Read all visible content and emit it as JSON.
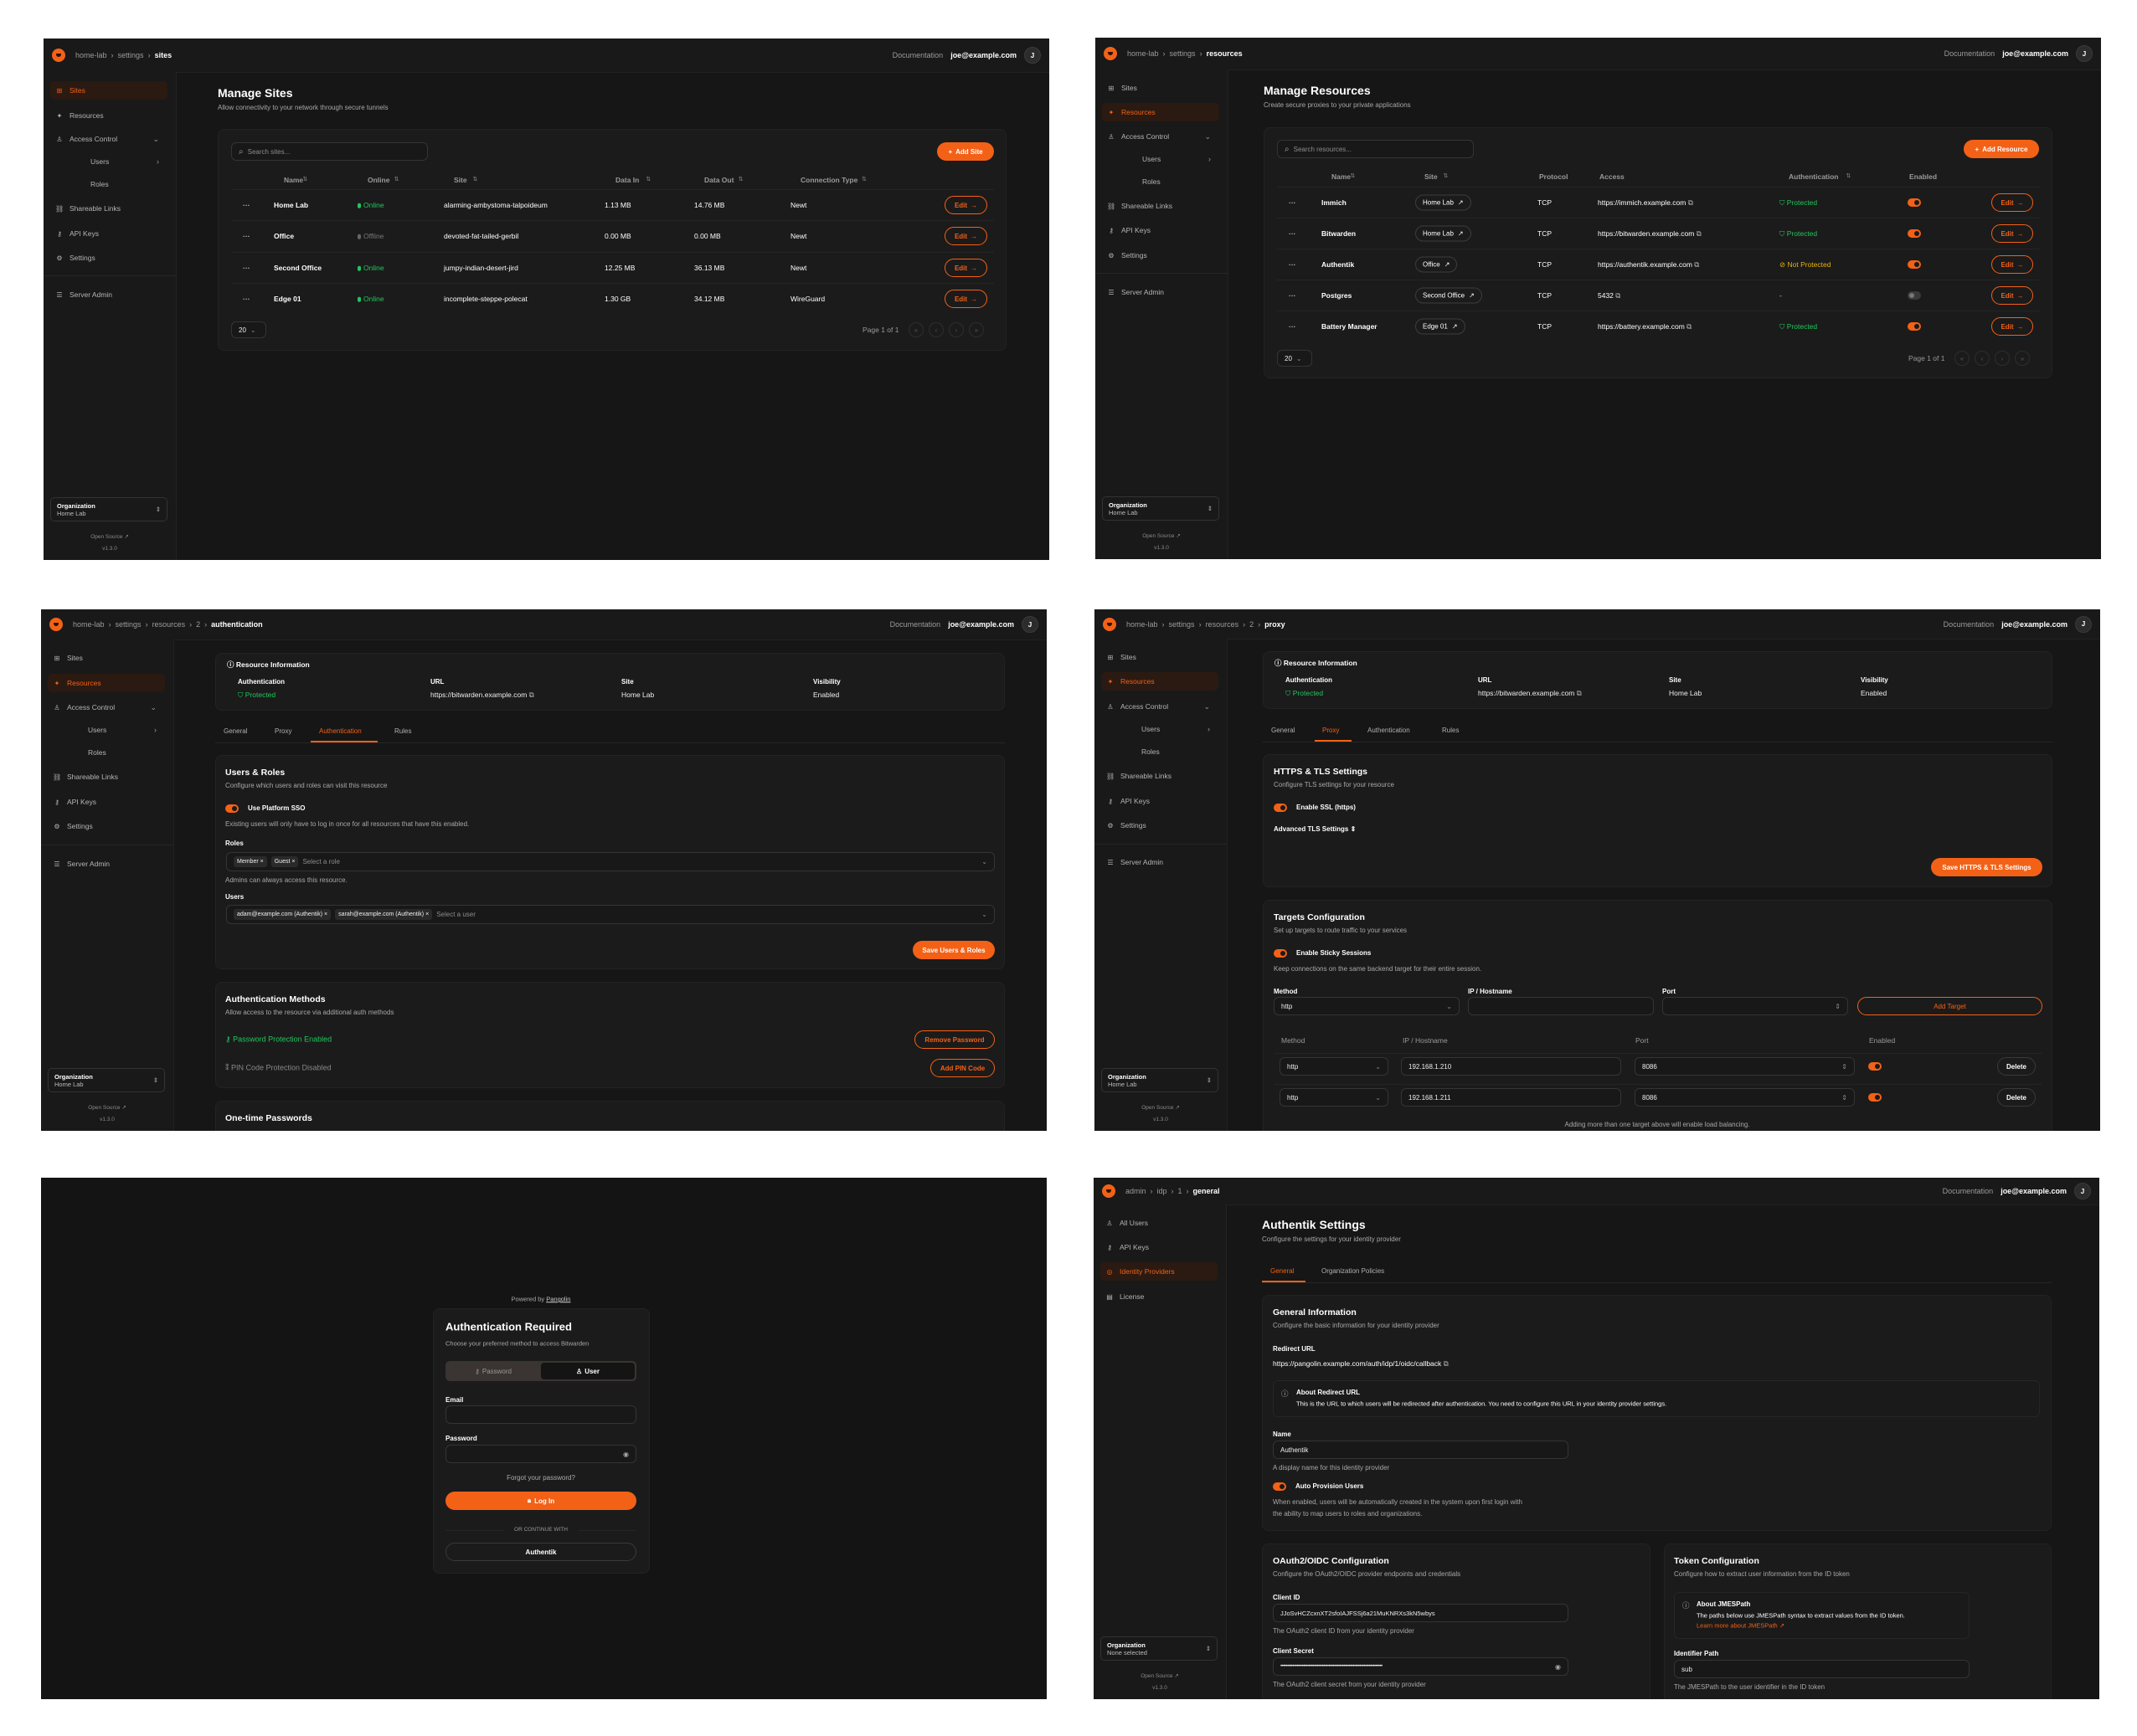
{
  "colors": {
    "accent": "#f36117",
    "success": "#22c55e",
    "warning": "#eab308",
    "background": "#161616"
  },
  "common": {
    "documentation": "Documentation",
    "user_email": "joe@example.com",
    "avatar_initial": "J",
    "org_label": "Organization",
    "open_source": "Open Source",
    "version": "v1.3.0",
    "edit_label": "Edit",
    "page_size": "20",
    "page_info": "Page 1 of 1"
  },
  "org_nav": [
    {
      "label": "Sites",
      "icon": "sites-icon"
    },
    {
      "label": "Resources",
      "icon": "resources-icon"
    },
    {
      "label": "Access Control",
      "icon": "users-icon"
    },
    {
      "label": "Users",
      "icon": ""
    },
    {
      "label": "Roles",
      "icon": ""
    },
    {
      "label": "Shareable Links",
      "icon": "link-icon"
    },
    {
      "label": "API Keys",
      "icon": "key-icon"
    },
    {
      "label": "Settings",
      "icon": "gear-icon"
    },
    {
      "label": "Server Admin",
      "icon": "server-icon"
    }
  ],
  "admin_nav": [
    {
      "label": "All Users",
      "icon": "users-icon"
    },
    {
      "label": "API Keys",
      "icon": "key-icon"
    },
    {
      "label": "Identity Providers",
      "icon": "fingerprint-icon"
    },
    {
      "label": "License",
      "icon": "license-icon"
    }
  ],
  "sites_page": {
    "breadcrumbs": [
      "home-lab",
      "settings",
      "sites"
    ],
    "org_name": "Home Lab",
    "title": "Manage Sites",
    "subtitle": "Allow connectivity to your network through secure tunnels",
    "search_placeholder": "Search sites...",
    "add_button": "Add Site",
    "columns": [
      "Name",
      "Online",
      "Site",
      "Data In",
      "Data Out",
      "Connection Type"
    ],
    "rows": [
      {
        "name": "Home Lab",
        "status": "Online",
        "online": true,
        "site": "alarming-ambystoma-talpoideum",
        "data_in": "1.13 MB",
        "data_out": "14.76 MB",
        "connection": "Newt"
      },
      {
        "name": "Office",
        "status": "Offline",
        "online": false,
        "site": "devoted-fat-tailed-gerbil",
        "data_in": "0.00 MB",
        "data_out": "0.00 MB",
        "connection": "Newt"
      },
      {
        "name": "Second Office",
        "status": "Online",
        "online": true,
        "site": "jumpy-indian-desert-jird",
        "data_in": "12.25 MB",
        "data_out": "36.13 MB",
        "connection": "Newt"
      },
      {
        "name": "Edge 01",
        "status": "Online",
        "online": true,
        "site": "incomplete-steppe-polecat",
        "data_in": "1.30 GB",
        "data_out": "34.12 MB",
        "connection": "WireGuard"
      }
    ]
  },
  "resources_page": {
    "breadcrumbs": [
      "home-lab",
      "settings",
      "resources"
    ],
    "org_name": "Home Lab",
    "title": "Manage Resources",
    "subtitle": "Create secure proxies to your private applications",
    "search_placeholder": "Search resources...",
    "add_button": "Add Resource",
    "columns": [
      "Name",
      "Site",
      "Protocol",
      "Access",
      "Authentication",
      "Enabled"
    ],
    "rows": [
      {
        "name": "Immich",
        "site": "Home Lab",
        "protocol": "TCP",
        "access": "https://immich.example.com",
        "auth": "Protected",
        "auth_state": "protected",
        "enabled": true
      },
      {
        "name": "Bitwarden",
        "site": "Home Lab",
        "protocol": "TCP",
        "access": "https://bitwarden.example.com",
        "auth": "Protected",
        "auth_state": "protected",
        "enabled": true
      },
      {
        "name": "Authentik",
        "site": "Office",
        "protocol": "TCP",
        "access": "https://authentik.example.com",
        "auth": "Not Protected",
        "auth_state": "unprotected",
        "enabled": true
      },
      {
        "name": "Postgres",
        "site": "Second Office",
        "protocol": "TCP",
        "access": "5432",
        "auth": "-",
        "auth_state": "none",
        "enabled": false
      },
      {
        "name": "Battery Manager",
        "site": "Edge 01",
        "protocol": "TCP",
        "access": "https://battery.example.com",
        "auth": "Protected",
        "auth_state": "protected",
        "enabled": true
      }
    ]
  },
  "resource_info": {
    "title": "Resource Information",
    "auth_label": "Authentication",
    "auth_value": "Protected",
    "url_label": "URL",
    "url_value": "https://bitwarden.example.com",
    "site_label": "Site",
    "site_value": "Home Lab",
    "visibility_label": "Visibility",
    "visibility_value": "Enabled"
  },
  "resource_tabs": [
    "General",
    "Proxy",
    "Authentication",
    "Rules"
  ],
  "auth_page": {
    "breadcrumbs": [
      "home-lab",
      "settings",
      "resources",
      "2",
      "authentication"
    ],
    "org_name": "Home Lab",
    "users_roles": {
      "title": "Users & Roles",
      "desc": "Configure which users and roles can visit this resource",
      "sso_label": "Use Platform SSO",
      "sso_desc": "Existing users will only have to log in once for all resources that have this enabled.",
      "roles_label": "Roles",
      "roles": [
        "Member",
        "Guest"
      ],
      "roles_placeholder": "Select a role",
      "roles_hint": "Admins can always access this resource.",
      "users_label": "Users",
      "users": [
        "adam@example.com (Authentik)",
        "sarah@example.com (Authentik)"
      ],
      "users_placeholder": "Select a user",
      "save_button": "Save Users & Roles"
    },
    "methods": {
      "title": "Authentication Methods",
      "desc": "Allow access to the resource via additional auth methods",
      "password_status": "Password Protection Enabled",
      "remove_password": "Remove Password",
      "pin_status": "PIN Code Protection Disabled",
      "add_pin": "Add PIN Code"
    },
    "otp_title": "One-time Passwords"
  },
  "proxy_page": {
    "breadcrumbs": [
      "home-lab",
      "settings",
      "resources",
      "2",
      "proxy"
    ],
    "org_name": "Home Lab",
    "tls": {
      "title": "HTTPS & TLS Settings",
      "desc": "Configure TLS settings for your resource",
      "ssl_label": "Enable SSL (https)",
      "advanced": "Advanced TLS Settings",
      "save_button": "Save HTTPS & TLS Settings"
    },
    "targets": {
      "title": "Targets Configuration",
      "desc": "Set up targets to route traffic to your services",
      "sticky_label": "Enable Sticky Sessions",
      "sticky_desc": "Keep connections on the same backend target for their entire session.",
      "method_label": "Method",
      "ip_label": "IP / Hostname",
      "port_label": "Port",
      "method_value": "http",
      "add_button": "Add Target",
      "columns": [
        "Method",
        "IP / Hostname",
        "Port",
        "Enabled"
      ],
      "rows": [
        {
          "method": "http",
          "ip": "192.168.1.210",
          "port": "8086",
          "enabled": true
        },
        {
          "method": "http",
          "ip": "192.168.1.211",
          "port": "8086",
          "enabled": true
        }
      ],
      "delete_label": "Delete",
      "footer": "Adding more than one target above will enable load balancing."
    }
  },
  "login_page": {
    "powered_by": "Powered by",
    "brand": "Pangolin",
    "title": "Authentication Required",
    "subtitle": "Choose your preferred method to access Bitwarden",
    "tab_password": "Password",
    "tab_user": "User",
    "email_label": "Email",
    "password_label": "Password",
    "forgot": "Forgot your password?",
    "login_button": "Log In",
    "divider": "OR CONTINUE WITH",
    "idp_button": "Authentik"
  },
  "idp_page": {
    "breadcrumbs": [
      "admin",
      "idp",
      "1",
      "general"
    ],
    "org_name": "None selected",
    "title": "Authentik Settings",
    "subtitle": "Configure the settings for your identity provider",
    "tabs": [
      "General",
      "Organization Policies"
    ],
    "general": {
      "title": "General Information",
      "desc": "Configure the basic information for your identity provider",
      "redirect_label": "Redirect URL",
      "redirect_url": "https://pangolin.example.com/auth/idp/1/oidc/callback",
      "about_title": "About Redirect URL",
      "about_text": "This is the URL to which users will be redirected after authentication. You need to configure this URL in your identity provider settings.",
      "name_label": "Name",
      "name_value": "Authentik",
      "name_hint": "A display name for this identity provider",
      "auto_label": "Auto Provision Users",
      "auto_desc_1": "When enabled, users will be automatically created in the system upon first login with",
      "auto_desc_2": "the ability to map users to roles and organizations."
    },
    "oauth": {
      "title": "OAuth2/OIDC Configuration",
      "desc": "Configure the OAuth2/OIDC provider endpoints and credentials",
      "client_id_label": "Client ID",
      "client_id": "JJoSvHCZcxnXT2sfoIAJFSSj6a21MuKNRXs3kN5wbys",
      "client_id_hint": "The OAuth2 client ID from your identity provider",
      "secret_label": "Client Secret",
      "secret_value": "••••••••••••••••••••••••••••••••••••••••••••••••••••••••••••••••••••••••••••",
      "secret_hint": "The OAuth2 client secret from your identity provider"
    },
    "token": {
      "title": "Token Configuration",
      "desc": "Configure how to extract user information from the ID token",
      "about_title": "About JMESPath",
      "about_text": "The paths below use JMESPath syntax to extract values from the ID token.",
      "about_link": "Learn more about JMESPath",
      "identifier_label": "Identifier Path",
      "identifier_value": "sub",
      "identifier_hint": "The JMESPath to the user identifier in the ID token"
    }
  }
}
